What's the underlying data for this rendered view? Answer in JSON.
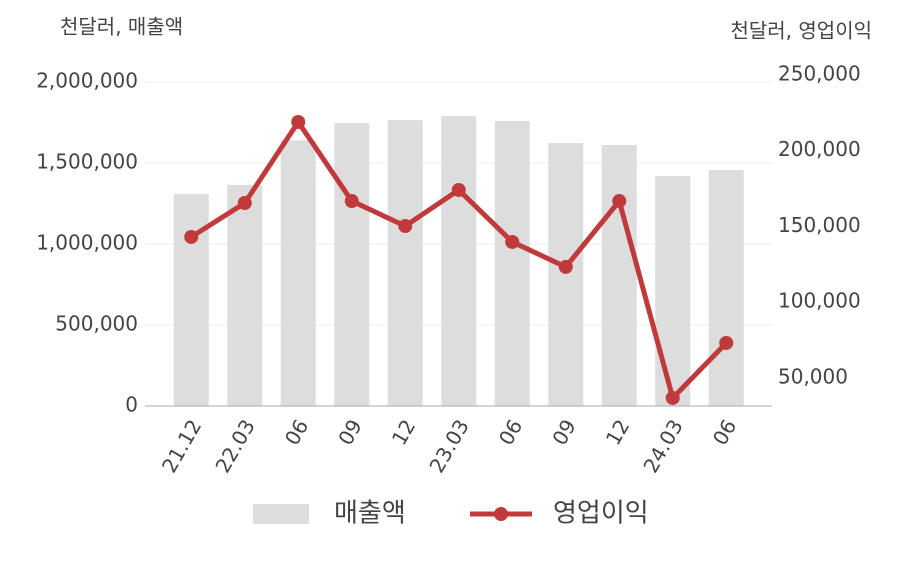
{
  "chart_data": {
    "type": "bar_line",
    "y_label": "천달러, 매출액",
    "y2_label": "천달러, 영업이익",
    "categories": [
      "21.12",
      "22.03",
      "06",
      "09",
      "12",
      "23.03",
      "06",
      "09",
      "12",
      "24.03",
      "06"
    ],
    "series": [
      {
        "name": "매출액",
        "type": "bar",
        "color": "#dddddd",
        "values": [
          1310000,
          1365000,
          1640000,
          1747000,
          1765000,
          1790000,
          1759000,
          1623000,
          1611000,
          1420000,
          1457000
        ]
      },
      {
        "name": "영업이익",
        "type": "line",
        "axis": "y2",
        "color": "#c0393b",
        "values": [
          143100,
          165500,
          219000,
          166800,
          150300,
          174100,
          139800,
          123300,
          166800,
          36800,
          73100
        ]
      }
    ],
    "ylim": [
      0,
      2000000
    ],
    "yticks": [
      {
        "value": 0,
        "label": "0"
      },
      {
        "value": 500000,
        "label": "500,000"
      },
      {
        "value": 1000000,
        "label": "1,000,000"
      },
      {
        "value": 1500000,
        "label": "1,500,000"
      },
      {
        "value": 2000000,
        "label": "2,000,000"
      }
    ],
    "y2lim": [
      31500,
      250000
    ],
    "y2ticks": [
      {
        "value": 50000,
        "label": "50,000"
      },
      {
        "value": 100000,
        "label": "100,000"
      },
      {
        "value": 150000,
        "label": "150,000"
      },
      {
        "value": 200000,
        "label": "200,000"
      },
      {
        "value": 250000,
        "label": "250,000"
      }
    ],
    "grid": true
  }
}
